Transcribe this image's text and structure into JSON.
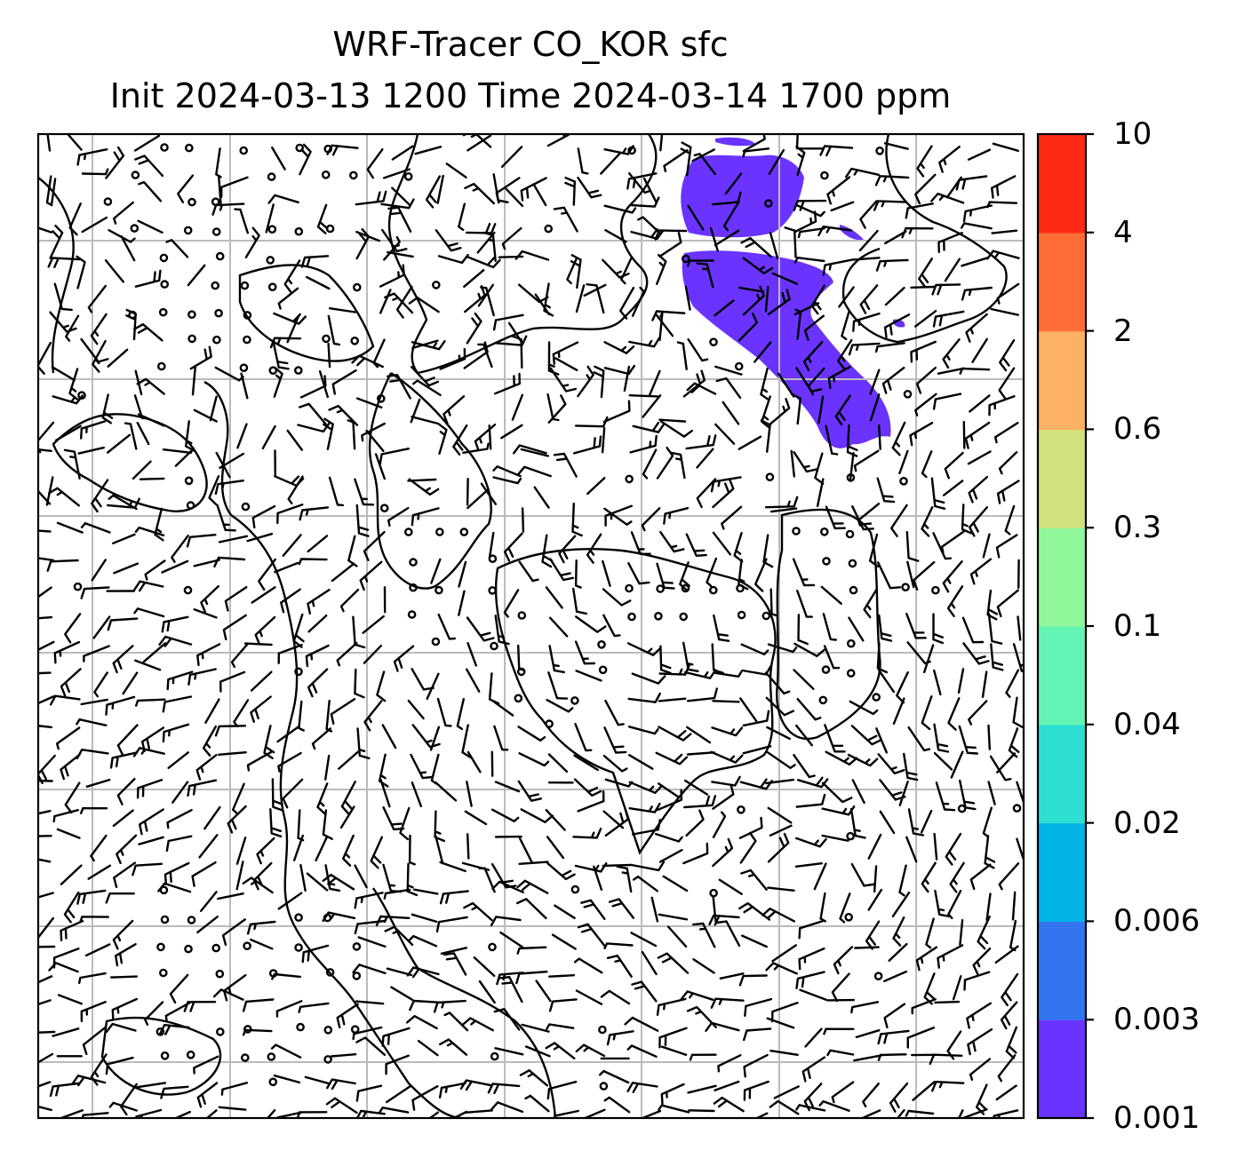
{
  "title": {
    "line1": "WRF-Tracer CO_KOR sfc",
    "line2": "Init 2024-03-13 1200 Time 2024-03-14 1700 ppm"
  },
  "colorbar": {
    "levels": [
      "0.001",
      "0.003",
      "0.006",
      "0.02",
      "0.04",
      "0.1",
      "0.3",
      "0.6",
      "2",
      "4",
      "10"
    ],
    "colors": [
      "#6a33ff",
      "#3375f0",
      "#00b4e8",
      "#2ddfd2",
      "#63f4b5",
      "#8ff79a",
      "#d2e07d",
      "#fcb262",
      "#ff6d36",
      "#ff2a14"
    ]
  },
  "plume_color": "#6a33ff",
  "grid_color": "#bbbbbb",
  "map": {
    "features": [
      "coastlines",
      "wind-barbs",
      "calm-wind-circles",
      "graticule",
      "CO tracer plume"
    ]
  }
}
